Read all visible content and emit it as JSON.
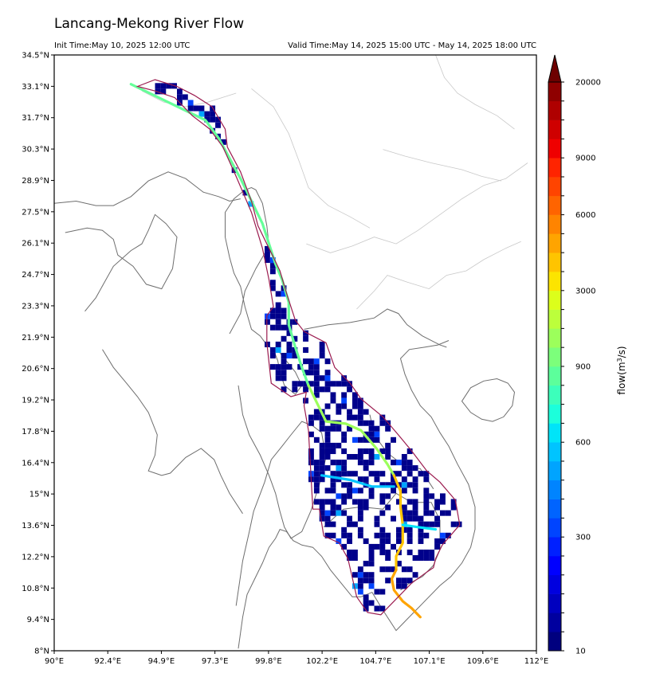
{
  "header": {
    "title": "Lancang-Mekong River Flow",
    "init_time": "Init Time:May 10, 2025 12:00 UTC",
    "valid_time": "Valid Time:May 14, 2025 15:00 UTC - May 14, 2025 18:00 UTC"
  },
  "colors": {
    "basin_outline": "#9b1b4f",
    "country_border": "#6e6e6e",
    "province_border": "#c8c8c8",
    "low_flow": "#00008b"
  },
  "chart_data": {
    "type": "heatmap",
    "title": "Lancang-Mekong River Flow",
    "xlabel": "",
    "ylabel": "",
    "xlim": [
      90,
      112
    ],
    "ylim": [
      8,
      34.5
    ],
    "x_ticks": [
      "90°E",
      "92.4°E",
      "94.9°E",
      "97.3°E",
      "99.8°E",
      "102.2°E",
      "104.7°E",
      "107.1°E",
      "109.6°E",
      "112°E"
    ],
    "y_ticks": [
      "34.5°N",
      "33.1°N",
      "31.7°N",
      "30.3°N",
      "28.9°N",
      "27.5°N",
      "26.1°N",
      "24.7°N",
      "23.3°N",
      "21.9°N",
      "20.6°N",
      "19.2°N",
      "17.8°N",
      "16.4°N",
      "15°N",
      "13.6°N",
      "12.2°N",
      "10.8°N",
      "9.4°N",
      "8°N"
    ],
    "colorbar": {
      "label_prefix": "flow(m",
      "label_sup": "3",
      "label_suffix": "/s)",
      "tick_labels": [
        "10",
        "300",
        "600",
        "900",
        "3000",
        "6000",
        "9000",
        "20000"
      ],
      "levels": [
        10,
        50,
        100,
        150,
        200,
        250,
        300,
        350,
        400,
        450,
        500,
        600,
        700,
        800,
        900,
        1000,
        1500,
        2000,
        2500,
        3000,
        3500,
        4000,
        5000,
        6000,
        7000,
        8000,
        9000,
        10000,
        12000,
        15000,
        20000
      ],
      "colors": [
        "#00007f",
        "#00009f",
        "#0000bf",
        "#0000df",
        "#0000ff",
        "#0020ff",
        "#0044ff",
        "#0064ff",
        "#0084ff",
        "#00a4ff",
        "#00c4ff",
        "#00e4f8",
        "#1cffdb",
        "#3cffbb",
        "#5cff9b",
        "#7cff7b",
        "#9cff5b",
        "#bcff3b",
        "#dcff1b",
        "#fce400",
        "#ffc400",
        "#ffa400",
        "#ff8400",
        "#ff6400",
        "#ff4400",
        "#ff2400",
        "#ef0000",
        "#cf0000",
        "#af0000",
        "#8f0000"
      ],
      "extend": "max"
    },
    "series": [
      {
        "name": "",
        "color": "#66ff99",
        "x": [
          93.5,
          96.9,
          97.5,
          98.5,
          99.5,
          100.1,
          100.4,
          100.7,
          100.7,
          101.0,
          101.3,
          101.6
        ],
        "y": [
          33.2,
          31.6,
          30.8,
          29.0,
          27.0,
          25.2,
          24.5,
          23.5,
          22.5,
          21.5,
          20.6,
          19.8
        ]
      },
      {
        "name": "",
        "color": "#9cff5b",
        "x": [
          101.6,
          102.4,
          103.3,
          104.0,
          104.7,
          105.2,
          105.5
        ],
        "y": [
          19.8,
          18.2,
          18.1,
          17.8,
          17.0,
          16.3,
          15.8
        ]
      },
      {
        "name": "",
        "color": "#ffc400",
        "x": [
          105.5,
          105.8,
          105.8,
          105.9,
          105.9,
          105.6,
          105.6
        ],
        "y": [
          15.8,
          15.1,
          14.4,
          13.6,
          12.8,
          12.2,
          11.6
        ]
      },
      {
        "name": "",
        "color": "#ffa400",
        "x": [
          105.6,
          105.4,
          105.5,
          105.9,
          106.3,
          106.7
        ],
        "y": [
          11.6,
          11.2,
          10.7,
          10.2,
          9.9,
          9.5
        ]
      },
      {
        "name": "",
        "color": "#00c4ff",
        "x": [
          102.2,
          103.5,
          104.5,
          105.5
        ],
        "y": [
          15.8,
          15.6,
          15.3,
          15.3
        ]
      },
      {
        "name": "",
        "color": "#00e4f8",
        "x": [
          105.9,
          106.6,
          107.4
        ],
        "y": [
          13.6,
          13.5,
          13.4
        ]
      }
    ],
    "basin_outline": {
      "lon": [
        93.8,
        94.6,
        95.6,
        96.4,
        97.2,
        97.8,
        97.9,
        98.5,
        99.0,
        99.3,
        99.8,
        100.3,
        100.6,
        101.0,
        101.4,
        102.4,
        102.8,
        103.5,
        104.0,
        105.0,
        105.7,
        106.3,
        107.0,
        107.6,
        108.3,
        108.5,
        107.7,
        107.4,
        107.3,
        107.0,
        106.3,
        106.0,
        104.9,
        104.3,
        103.8,
        103.4,
        103.0,
        102.3,
        102.1,
        101.8,
        101.6,
        101.4,
        101.5,
        100.8,
        99.9,
        99.7,
        99.7,
        100.0,
        99.8,
        99.5,
        99.0,
        98.3,
        97.7,
        97.1,
        96.3,
        95.5,
        94.6,
        93.8
      ],
      "lat": [
        33.1,
        33.4,
        33.1,
        32.7,
        32.2,
        31.2,
        30.4,
        29.3,
        28.0,
        26.9,
        25.9,
        24.9,
        23.9,
        22.7,
        22.2,
        21.7,
        20.6,
        19.9,
        19.2,
        18.4,
        17.6,
        16.9,
        16.0,
        15.5,
        14.7,
        13.6,
        12.7,
        12.1,
        11.7,
        11.5,
        11.0,
        10.7,
        9.6,
        9.7,
        10.4,
        12.1,
        12.8,
        13.1,
        14.3,
        14.3,
        17.8,
        18.9,
        19.5,
        19.3,
        19.9,
        21.7,
        22.9,
        23.3,
        24.5,
        25.9,
        27.5,
        29.1,
        30.4,
        31.2,
        31.8,
        32.6,
        32.9,
        33.1
      ]
    },
    "coastline": {
      "lon": [
        98.4,
        98.6,
        98.8,
        99.2,
        99.5,
        99.8,
        100.1,
        100.3,
        100.6,
        100.9,
        101.3,
        101.8,
        102.2,
        102.6,
        103.1,
        103.6,
        104.0,
        104.5,
        105.0,
        105.6,
        106.1,
        106.6,
        107.1,
        107.6,
        108.1,
        108.6,
        109.0,
        109.2,
        109.2,
        108.9,
        108.4,
        108.0,
        107.6,
        107.2,
        106.7,
        106.3,
        106.0,
        105.8,
        106.2,
        106.9,
        107.5,
        108.0
      ],
      "lat": [
        8.1,
        9.5,
        10.5,
        11.3,
        11.9,
        12.6,
        13.0,
        13.4,
        13.3,
        12.9,
        12.7,
        12.6,
        12.2,
        11.6,
        11.0,
        10.4,
        10.4,
        10.6,
        9.8,
        8.9,
        9.4,
        9.9,
        10.4,
        10.9,
        11.3,
        11.9,
        12.6,
        13.4,
        14.4,
        15.4,
        16.3,
        17.1,
        17.7,
        18.4,
        18.9,
        19.6,
        20.3,
        21.0,
        21.4,
        21.5,
        21.6,
        21.8
      ]
    },
    "country_borders": [
      {
        "lon": [
          100.1,
          100.5,
          101.0,
          101.3,
          101.0,
          100.5,
          100.3,
          100.2,
          100.0,
          99.7,
          99.4,
          99.0,
          98.7,
          98.5,
          98.2,
          98.0,
          97.8,
          97.8,
          98.2,
          98.7,
          99.0,
          99.2,
          99.5,
          99.7,
          99.8,
          99.2,
          98.7,
          98.5,
          98.0
        ],
        "lat": [
          21.5,
          21.0,
          20.4,
          19.8,
          19.4,
          19.8,
          20.4,
          20.9,
          21.4,
          21.6,
          22.0,
          22.3,
          23.3,
          24.2,
          24.8,
          25.5,
          26.4,
          27.5,
          28.1,
          28.5,
          28.6,
          28.5,
          27.9,
          26.9,
          26.0,
          25.0,
          24.0,
          23.0,
          22.1
        ]
      },
      {
        "lon": [
          98.3,
          98.6,
          98.9,
          99.1,
          99.6,
          99.9,
          100.4,
          100.8,
          101.3,
          101.8,
          102.2,
          102.4,
          102.1,
          101.7,
          101.3,
          100.8,
          100.5,
          100.3,
          100.1,
          99.8,
          99.4,
          98.9,
          98.6,
          98.4
        ],
        "lat": [
          10.0,
          12.0,
          13.3,
          14.2,
          15.5,
          16.5,
          17.1,
          17.6,
          18.2,
          18.0,
          17.7,
          16.6,
          15.4,
          14.2,
          13.3,
          13.0,
          13.5,
          14.2,
          15.0,
          15.8,
          16.7,
          17.6,
          18.5,
          19.8
        ]
      },
      {
        "lon": [
          101.4,
          102.5,
          103.5,
          104.6,
          105.2,
          105.7,
          106.1,
          106.8,
          107.6,
          107.9
        ],
        "lat": [
          22.3,
          22.5,
          22.6,
          22.8,
          23.2,
          23.0,
          22.5,
          22.0,
          21.6,
          21.5
        ]
      },
      {
        "lon": [
          102.3,
          103.2,
          104.0,
          105.0,
          105.6,
          106.3,
          107.2,
          107.6,
          107.6,
          107.3,
          106.8,
          106.2,
          105.8
        ],
        "lat": [
          13.5,
          14.3,
          14.4,
          14.3,
          15.0,
          14.6,
          14.6,
          13.8,
          12.5,
          11.8,
          11.3,
          11.0,
          10.7
        ]
      },
      {
        "lon": [
          104.4,
          104.6,
          105.2,
          106.0,
          106.7,
          107.3
        ],
        "lat": [
          18.5,
          17.6,
          16.8,
          16.2,
          16.1,
          15.2
        ]
      },
      {
        "lon": [
          90.0,
          91.0,
          91.9,
          92.7,
          93.5,
          94.3,
          95.2,
          96.0,
          96.8,
          97.5,
          98.0,
          98.5
        ],
        "lat": [
          27.9,
          28.0,
          27.8,
          27.8,
          28.2,
          28.9,
          29.3,
          29.0,
          28.4,
          28.2,
          28.0,
          28.1
        ]
      },
      {
        "lon": [
          90.5,
          91.5,
          92.2,
          92.7,
          92.9,
          93.6,
          94.2,
          94.9,
          95.4,
          95.6,
          95.1,
          94.6,
          94.3,
          94.0,
          93.5,
          92.7,
          92.3,
          91.9,
          91.4
        ],
        "lat": [
          26.6,
          26.8,
          26.7,
          26.3,
          25.6,
          25.1,
          24.3,
          24.1,
          25.0,
          26.4,
          27.0,
          27.4,
          26.7,
          26.1,
          25.8,
          25.1,
          24.4,
          23.7,
          23.1
        ]
      },
      {
        "lon": [
          92.2,
          92.7,
          93.3,
          93.8,
          94.3,
          94.7,
          94.6,
          94.3,
          94.6,
          94.9,
          95.3,
          96.0,
          96.7,
          97.3,
          97.6,
          98.0,
          98.6
        ],
        "lat": [
          21.4,
          20.6,
          19.9,
          19.3,
          18.6,
          17.6,
          16.7,
          16.0,
          15.9,
          15.8,
          15.9,
          16.6,
          17.0,
          16.5,
          15.8,
          15.0,
          14.1
        ]
      }
    ],
    "province_borders": [
      {
        "lon": [
          94.0,
          95.0,
          96.0,
          97.0,
          98.3
        ],
        "lat": [
          32.9,
          32.4,
          32.2,
          32.4,
          32.8
        ]
      },
      {
        "lon": [
          99.0,
          100.0,
          100.7,
          101.2,
          101.6,
          102.5,
          103.5,
          104.4
        ],
        "lat": [
          33.0,
          32.2,
          31.0,
          29.7,
          28.6,
          27.8,
          27.3,
          26.8
        ]
      },
      {
        "lon": [
          101.5,
          102.6,
          103.6,
          104.6,
          105.6,
          106.6,
          107.6,
          108.6,
          109.6,
          110.6,
          111.6
        ],
        "lat": [
          26.1,
          25.7,
          26.0,
          26.4,
          26.1,
          26.7,
          27.4,
          28.1,
          28.7,
          29.0,
          29.7
        ]
      },
      {
        "lon": [
          103.8,
          104.6,
          105.2,
          106.1,
          107.1,
          107.9,
          108.8,
          109.6,
          110.6,
          111.3
        ],
        "lat": [
          23.2,
          24.0,
          24.7,
          24.4,
          24.1,
          24.7,
          24.9,
          25.4,
          25.9,
          26.2
        ]
      },
      {
        "lon": [
          105.0,
          106.0,
          107.2,
          108.6,
          109.5,
          110.4
        ],
        "lat": [
          30.3,
          30.0,
          29.7,
          29.4,
          29.1,
          28.9
        ]
      },
      {
        "lon": [
          107.4,
          107.8,
          108.4,
          109.2,
          110.2,
          111.0
        ],
        "lat": [
          34.5,
          33.5,
          32.8,
          32.3,
          31.8,
          31.2
        ]
      }
    ],
    "hainan": {
      "lon": [
        108.6,
        109.0,
        109.6,
        110.2,
        110.7,
        111.0,
        110.9,
        110.5,
        110.0,
        109.5,
        109.0,
        108.6
      ],
      "lat": [
        19.1,
        19.7,
        20.0,
        20.1,
        19.9,
        19.5,
        18.9,
        18.4,
        18.2,
        18.3,
        18.6,
        19.1
      ]
    }
  }
}
